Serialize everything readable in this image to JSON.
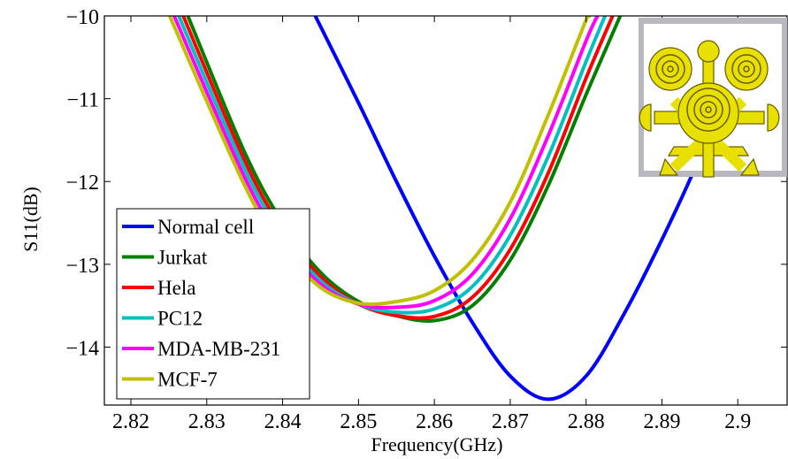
{
  "chart_data": {
    "type": "line",
    "title": "",
    "xlabel": "Frequency(GHz)",
    "ylabel": "S11(dB)",
    "xlim": [
      2.8165,
      2.9065
    ],
    "ylim": [
      -14.7,
      -10
    ],
    "xticks": [
      2.82,
      2.83,
      2.84,
      2.85,
      2.86,
      2.87,
      2.88,
      2.89,
      2.9
    ],
    "xtick_labels": [
      "2.82",
      "2.83",
      "2.84",
      "2.85",
      "2.86",
      "2.87",
      "2.88",
      "2.89",
      "2.9"
    ],
    "yticks": [
      -10,
      -11,
      -12,
      -13,
      -14
    ],
    "ytick_labels": [
      "−10",
      "−11",
      "−12",
      "−13",
      "−14"
    ],
    "grid": false,
    "legend_position": "bottom-left",
    "inset": "sensor-layout-image",
    "series": [
      {
        "name": "Normal cell",
        "color": "#0000ff",
        "x": [
          2.8443,
          2.85,
          2.855,
          2.86,
          2.865,
          2.87,
          2.875,
          2.88,
          2.885,
          2.89,
          2.895,
          2.9005
        ],
        "y": [
          -10.0,
          -11.05,
          -12.0,
          -12.9,
          -13.7,
          -14.35,
          -14.63,
          -14.35,
          -13.6,
          -12.7,
          -11.7,
          -10.4
        ]
      },
      {
        "name": "Jurkat",
        "color": "#008000",
        "x": [
          2.8275,
          2.835,
          2.84,
          2.845,
          2.85,
          2.855,
          2.86,
          2.865,
          2.87,
          2.875,
          2.88,
          2.8845
        ],
        "y": [
          -10.0,
          -11.65,
          -12.5,
          -13.1,
          -13.45,
          -13.62,
          -13.68,
          -13.5,
          -12.95,
          -12.05,
          -10.95,
          -10.0
        ]
      },
      {
        "name": "Hela",
        "color": "#ff0000",
        "x": [
          2.8269,
          2.835,
          2.84,
          2.845,
          2.85,
          2.855,
          2.86,
          2.865,
          2.87,
          2.875,
          2.88,
          2.8835
        ],
        "y": [
          -10.0,
          -11.75,
          -12.58,
          -13.15,
          -13.48,
          -13.62,
          -13.63,
          -13.4,
          -12.82,
          -11.9,
          -10.75,
          -10.0
        ]
      },
      {
        "name": "PC12",
        "color": "#00c0c0",
        "x": [
          2.8263,
          2.835,
          2.84,
          2.845,
          2.85,
          2.855,
          2.86,
          2.865,
          2.87,
          2.875,
          2.88,
          2.8825
        ],
        "y": [
          -10.0,
          -11.85,
          -12.65,
          -13.2,
          -13.48,
          -13.58,
          -13.54,
          -13.27,
          -12.65,
          -11.7,
          -10.55,
          -10.0
        ]
      },
      {
        "name": "MDA-MB-231",
        "color": "#ff00ff",
        "x": [
          2.8257,
          2.835,
          2.84,
          2.845,
          2.85,
          2.855,
          2.86,
          2.865,
          2.87,
          2.875,
          2.88,
          2.8815
        ],
        "y": [
          -10.0,
          -11.95,
          -12.72,
          -13.24,
          -13.48,
          -13.52,
          -13.44,
          -13.12,
          -12.45,
          -11.45,
          -10.3,
          -10.0
        ]
      },
      {
        "name": "MCF-7",
        "color": "#c0c000",
        "x": [
          2.8251,
          2.835,
          2.84,
          2.845,
          2.85,
          2.855,
          2.86,
          2.865,
          2.87,
          2.875,
          2.88,
          2.8805
        ],
        "y": [
          -10.0,
          -12.05,
          -12.8,
          -13.28,
          -13.47,
          -13.45,
          -13.32,
          -12.95,
          -12.25,
          -11.2,
          -10.05,
          -10.0
        ]
      }
    ]
  }
}
